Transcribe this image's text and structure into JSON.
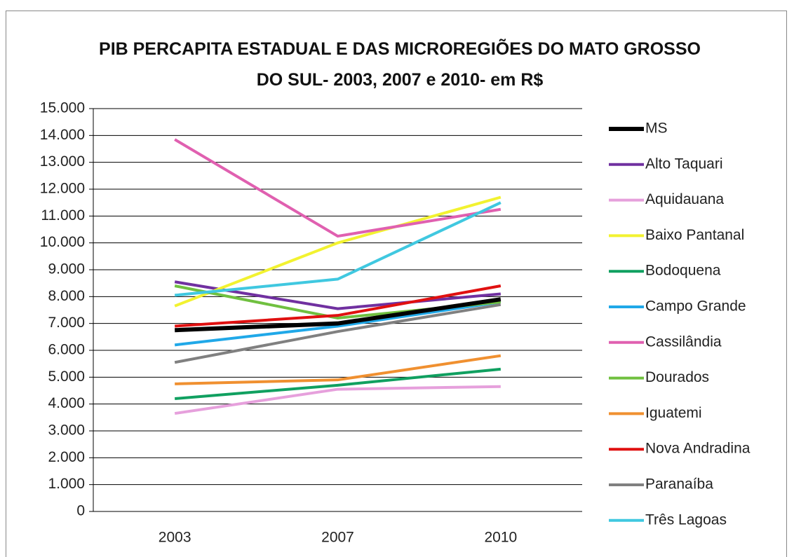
{
  "chart_data": {
    "type": "line",
    "title": "PIB PERCAPITA ESTADUAL E DAS MICROREGIÕES DO MATO GROSSO DO SUL- 2003, 2007 e 2010- em R$",
    "categories": [
      "2003",
      "2007",
      "2010"
    ],
    "ylim": [
      0,
      15000
    ],
    "yticks": [
      0,
      {
        "value": 1000,
        "label": "1.000"
      },
      {
        "value": 2000,
        "label": "2.000"
      },
      {
        "value": 3000,
        "label": "3.000"
      },
      {
        "value": 4000,
        "label": "4.000"
      },
      {
        "value": 5000,
        "label": "5.000"
      },
      {
        "value": 6000,
        "label": "6.000"
      },
      {
        "value": 7000,
        "label": "7.000"
      },
      {
        "value": 8000,
        "label": "8.000"
      },
      {
        "value": 9000,
        "label": "9.000"
      },
      {
        "value": 10000,
        "label": "10.000"
      },
      {
        "value": 11000,
        "label": "11.000"
      },
      {
        "value": 12000,
        "label": "12.000"
      },
      {
        "value": 13000,
        "label": "13.000"
      },
      {
        "value": 14000,
        "label": "14.000"
      },
      {
        "value": 15000,
        "label": "15.000"
      }
    ],
    "grid": true,
    "legend": "right",
    "series": [
      {
        "name": "MS",
        "color": "#000000",
        "values": [
          6750,
          7000,
          7900
        ]
      },
      {
        "name": "Alto Taquari",
        "color": "#7030a0",
        "values": [
          8550,
          7550,
          8100
        ]
      },
      {
        "name": "Aquidauana",
        "color": "#e6a0dc",
        "values": [
          3650,
          4550,
          4650
        ]
      },
      {
        "name": "Baixo Pantanal",
        "color": "#f2f230",
        "values": [
          7650,
          10000,
          11700
        ]
      },
      {
        "name": "Bodoquena",
        "color": "#10a060",
        "values": [
          4200,
          4700,
          5300
        ]
      },
      {
        "name": "Campo Grande",
        "color": "#20a8e8",
        "values": [
          6200,
          6900,
          7800
        ]
      },
      {
        "name": "Cassilândia",
        "color": "#e060b0",
        "values": [
          13850,
          10250,
          11250
        ]
      },
      {
        "name": "Dourados",
        "color": "#70c040",
        "values": [
          8400,
          7200,
          7800
        ]
      },
      {
        "name": "Iguatemi",
        "color": "#f09030",
        "values": [
          4750,
          4900,
          5800
        ]
      },
      {
        "name": "Nova Andradina",
        "color": "#e01010",
        "values": [
          6900,
          7300,
          8400
        ]
      },
      {
        "name": "Paranaíba",
        "color": "#808080",
        "values": [
          5550,
          6700,
          7700
        ]
      },
      {
        "name": "Três Lagoas",
        "color": "#40c8e0",
        "values": [
          8050,
          8650,
          11500
        ]
      }
    ]
  }
}
